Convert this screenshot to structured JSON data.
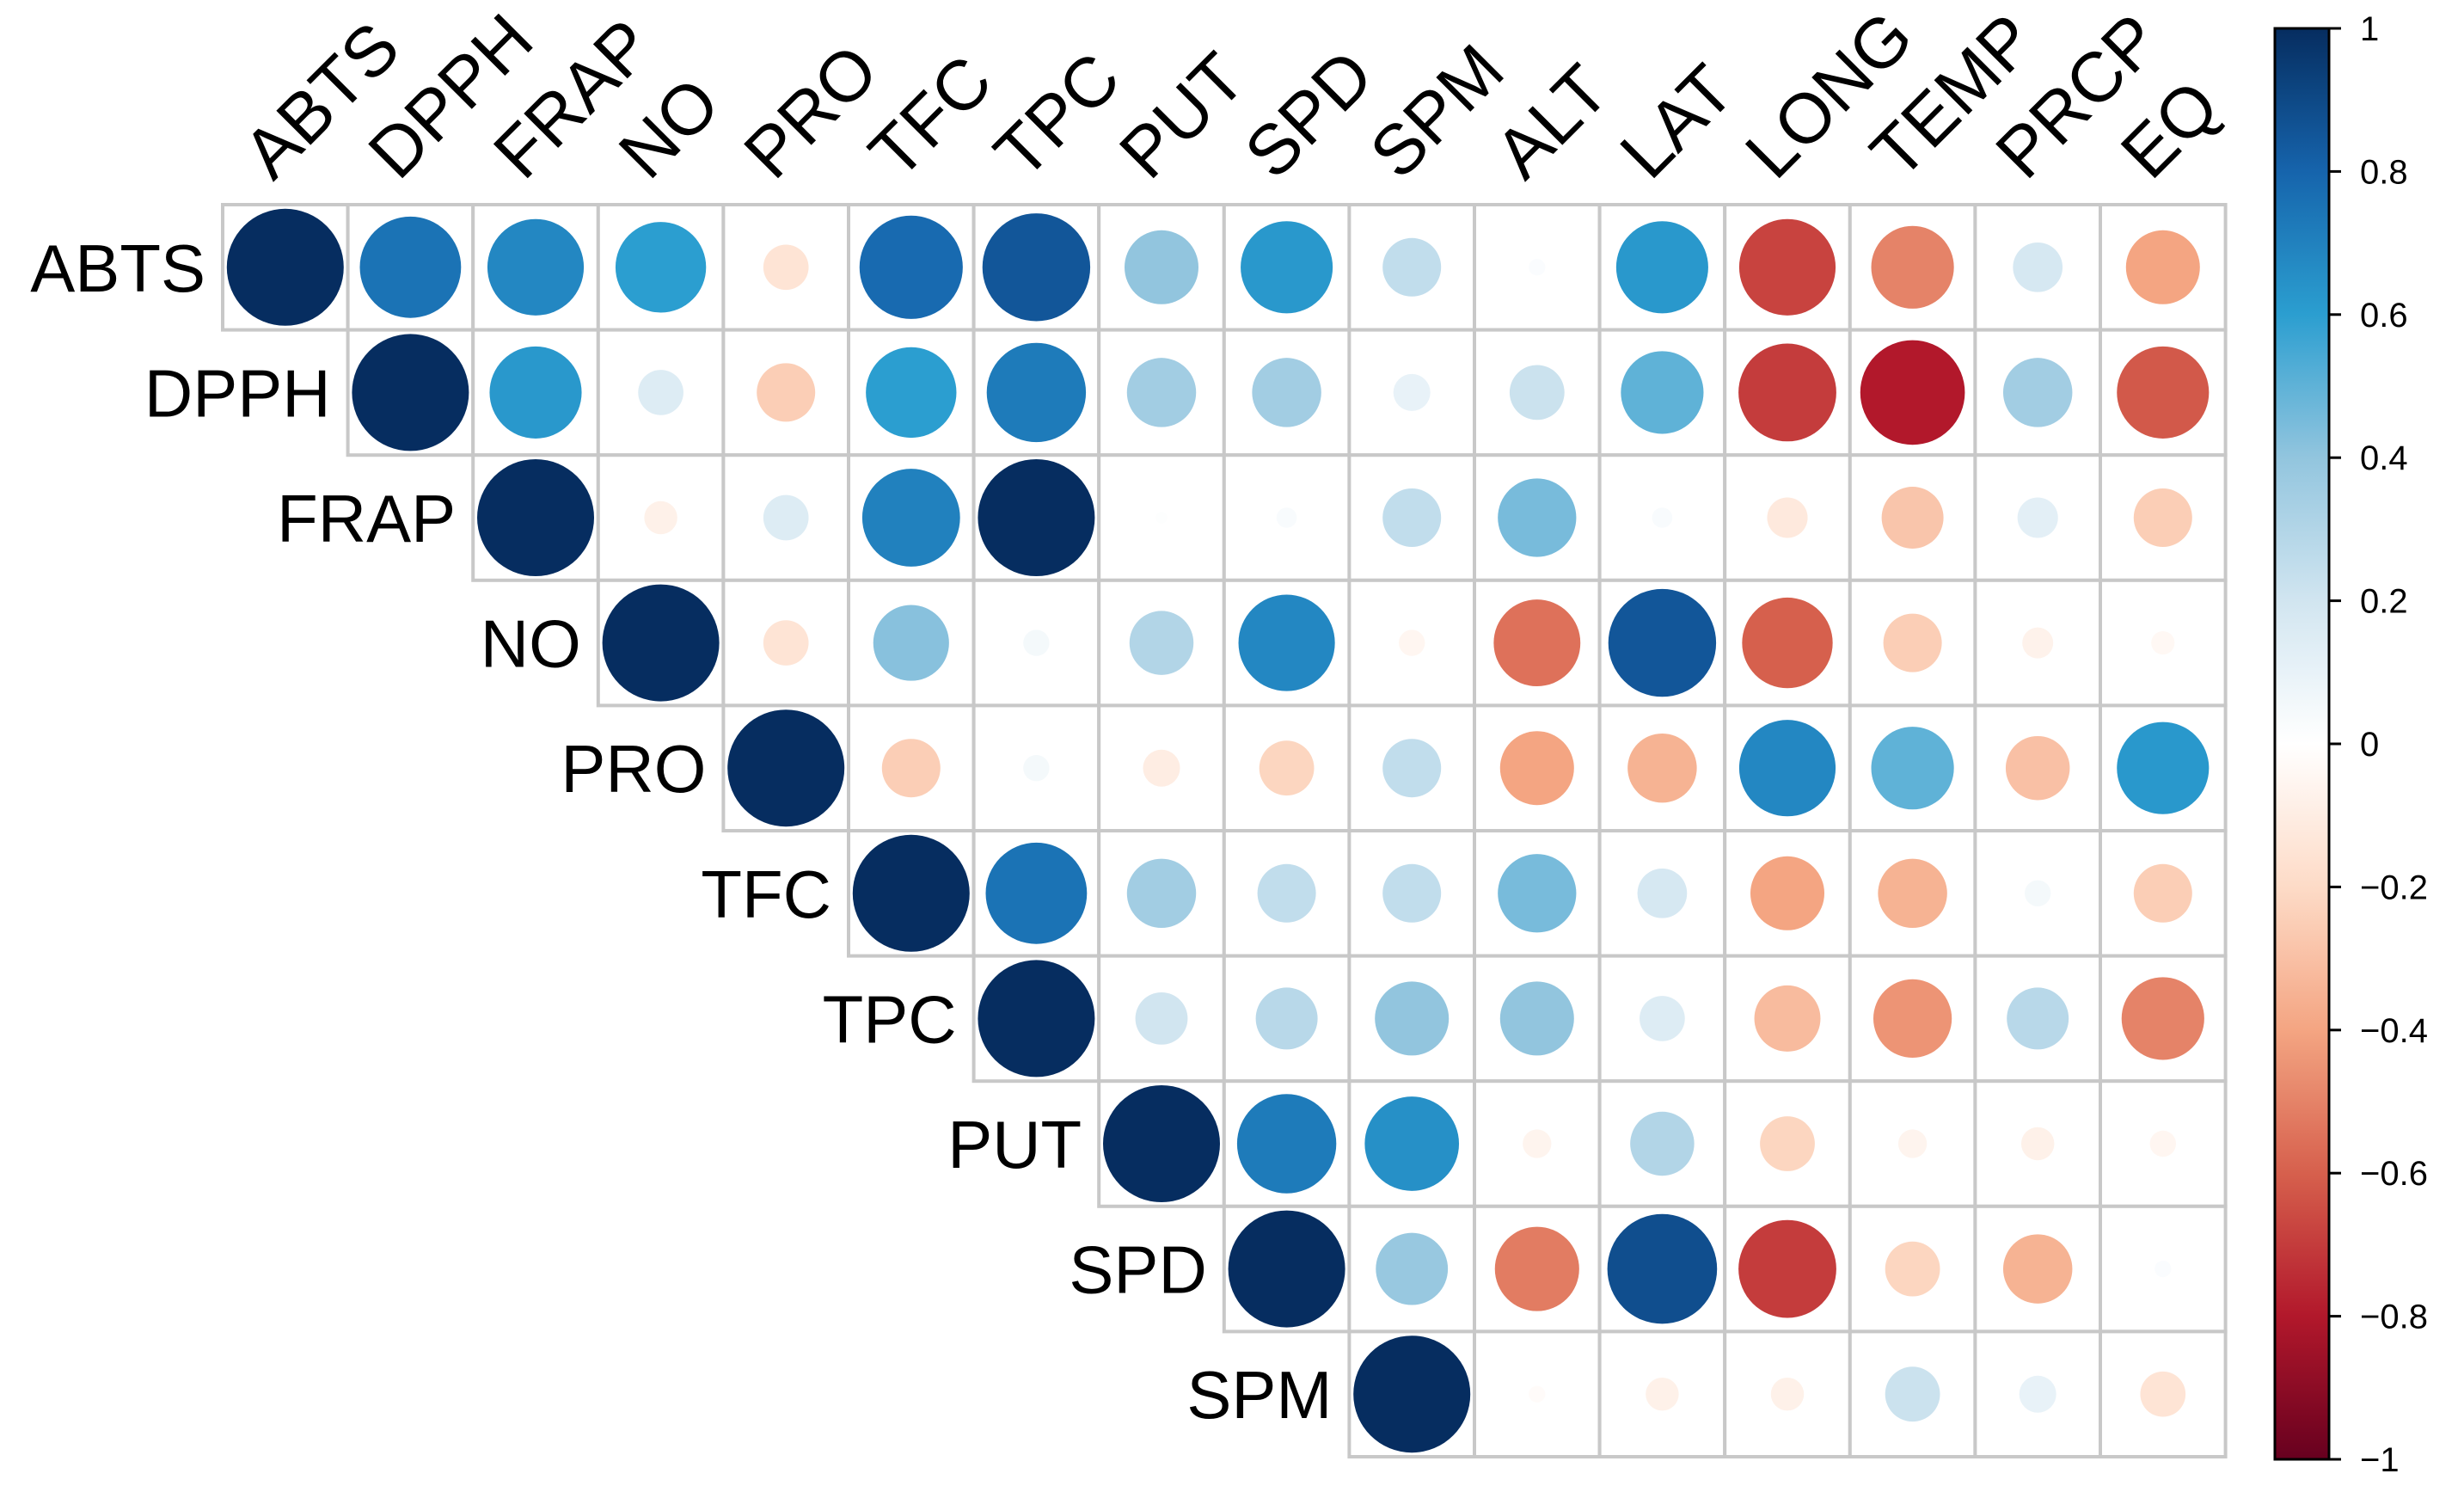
{
  "chart_data": {
    "type": "heatmap",
    "style": "correlation-circles-upper-triangle",
    "title": "",
    "row_variables": [
      "ABTS",
      "DPPH",
      "FRAP",
      "NO",
      "PRO",
      "TFC",
      "TPC",
      "PUT",
      "SPD",
      "SPM"
    ],
    "column_variables": [
      "ABTS",
      "DPPH",
      "FRAP",
      "NO",
      "PRO",
      "TFC",
      "TPC",
      "PUT",
      "SPD",
      "SPM",
      "ALT",
      "LAT",
      "LONG",
      "TEMP",
      "PRCP",
      "EQ"
    ],
    "values": [
      [
        1.0,
        0.75,
        0.68,
        0.6,
        -0.15,
        0.78,
        0.85,
        0.4,
        0.62,
        0.25,
        0.02,
        0.62,
        -0.68,
        -0.5,
        0.18,
        -0.4
      ],
      [
        null,
        1.0,
        0.62,
        0.15,
        -0.25,
        0.6,
        0.72,
        0.35,
        0.35,
        0.1,
        0.22,
        0.5,
        -0.7,
        -0.8,
        0.35,
        -0.62
      ],
      [
        null,
        null,
        1.0,
        -0.08,
        0.15,
        0.7,
        1.0,
        0.01,
        0.03,
        0.25,
        0.45,
        0.03,
        -0.12,
        -0.28,
        0.12,
        -0.25
      ],
      [
        null,
        null,
        null,
        1.0,
        -0.15,
        0.42,
        0.05,
        0.3,
        0.68,
        -0.05,
        -0.55,
        0.85,
        -0.6,
        -0.25,
        -0.07,
        -0.04
      ],
      [
        null,
        null,
        null,
        null,
        1.0,
        -0.25,
        0.05,
        -0.1,
        -0.22,
        0.25,
        -0.4,
        -0.35,
        0.68,
        0.5,
        -0.3,
        0.62
      ],
      [
        null,
        null,
        null,
        null,
        null,
        1.0,
        0.75,
        0.35,
        0.25,
        0.25,
        0.45,
        0.18,
        -0.4,
        -0.35,
        0.05,
        -0.25
      ],
      [
        null,
        null,
        null,
        null,
        null,
        null,
        1.0,
        0.2,
        0.28,
        0.4,
        0.4,
        0.15,
        -0.32,
        -0.45,
        0.28,
        -0.5
      ],
      [
        null,
        null,
        null,
        null,
        null,
        null,
        null,
        1.0,
        0.72,
        0.65,
        -0.06,
        0.3,
        -0.22,
        -0.06,
        -0.08,
        -0.05
      ],
      [
        null,
        null,
        null,
        null,
        null,
        null,
        null,
        null,
        1.0,
        0.38,
        -0.52,
        0.88,
        -0.7,
        -0.22,
        -0.35,
        0.02
      ],
      [
        null,
        null,
        null,
        null,
        null,
        null,
        null,
        null,
        null,
        1.0,
        -0.02,
        -0.08,
        -0.08,
        0.22,
        0.1,
        -0.15
      ]
    ],
    "colorbar": {
      "range": [
        -1,
        1
      ],
      "ticks": [
        "1",
        "0.8",
        "0.6",
        "0.4",
        "0.2",
        "0",
        "−0.2",
        "−0.4",
        "−0.6",
        "−0.8",
        "−1"
      ],
      "tick_values": [
        1,
        0.8,
        0.6,
        0.4,
        0.2,
        0,
        -0.2,
        -0.4,
        -0.6,
        -0.8,
        -1
      ],
      "placement": "right",
      "colors": {
        "neg_1": "#67001f",
        "neg_0_8": "#b2182b",
        "neg_0_6": "#d6604d",
        "neg_0_4": "#f4a582",
        "neg_0_2": "#fddbc7",
        "zero": "#ffffff",
        "pos_0_2": "#d1e5f0",
        "pos_0_4": "#92c5de",
        "pos_0_6": "#2b9ed0",
        "pos_0_8": "#1664ac",
        "pos_1": "#062d60"
      }
    },
    "grid": true,
    "grid_color": "#c8c8c8"
  }
}
